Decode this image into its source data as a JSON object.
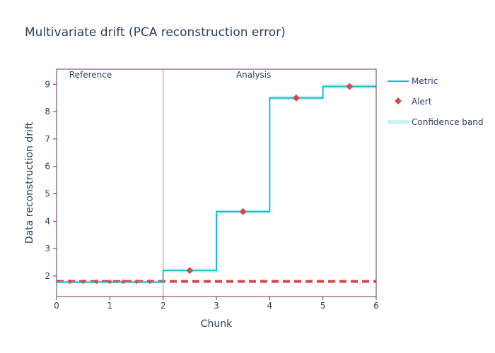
{
  "chart_data": {
    "type": "line",
    "title": "Multivariate drift (PCA reconstruction error)",
    "xlabel": "Chunk",
    "ylabel": "Data reconstruction drift",
    "xlim": [
      0,
      6
    ],
    "ylim": [
      1.25,
      9.55
    ],
    "x_ticks": [
      0,
      1,
      2,
      3,
      4,
      5,
      6
    ],
    "y_ticks": [
      2,
      3,
      4,
      5,
      6,
      7,
      8,
      9
    ],
    "step_shape": "hv",
    "grid": false,
    "legend_position": "right",
    "regions": [
      {
        "label": "Reference",
        "x_start": 0,
        "x_end": 2
      },
      {
        "label": "Analysis",
        "x_start": 2,
        "x_end": 6
      }
    ],
    "divider_x": 2,
    "threshold": {
      "value": 1.8,
      "color": "#d24a4a",
      "style": "dashed"
    },
    "series": [
      {
        "name": "Metric",
        "role": "metric",
        "color": "#17becf",
        "x": [
          0,
          0.5,
          1,
          1.5,
          2,
          3,
          4,
          5,
          6
        ],
        "y": [
          1.78,
          1.78,
          1.78,
          1.78,
          2.2,
          4.35,
          8.5,
          8.92,
          8.92
        ]
      },
      {
        "name": "Alert",
        "role": "alert",
        "color": "#d24a4a",
        "marker": "diamond",
        "x": [
          2.5,
          3.5,
          4.5,
          5.5
        ],
        "y": [
          2.2,
          4.35,
          8.5,
          8.92
        ]
      },
      {
        "name": "Confidence band",
        "role": "band",
        "color": "#cdeff8",
        "x": [
          0,
          2,
          3,
          4,
          5,
          6
        ],
        "lower": [
          1.73,
          2.13,
          4.28,
          8.42,
          8.84,
          8.84
        ],
        "upper": [
          1.85,
          2.27,
          4.42,
          8.58,
          9.0,
          9.0
        ]
      }
    ],
    "reference_markers": {
      "color": "#d24a4a",
      "marker": "diamond",
      "x": [
        0.25,
        0.5,
        0.75,
        1.0,
        1.25,
        1.5,
        1.75
      ],
      "y": [
        1.79,
        1.79,
        1.79,
        1.79,
        1.79,
        1.79,
        1.79
      ]
    },
    "colors": {
      "frame": "#6b2c6b",
      "divider": "#999999"
    }
  }
}
